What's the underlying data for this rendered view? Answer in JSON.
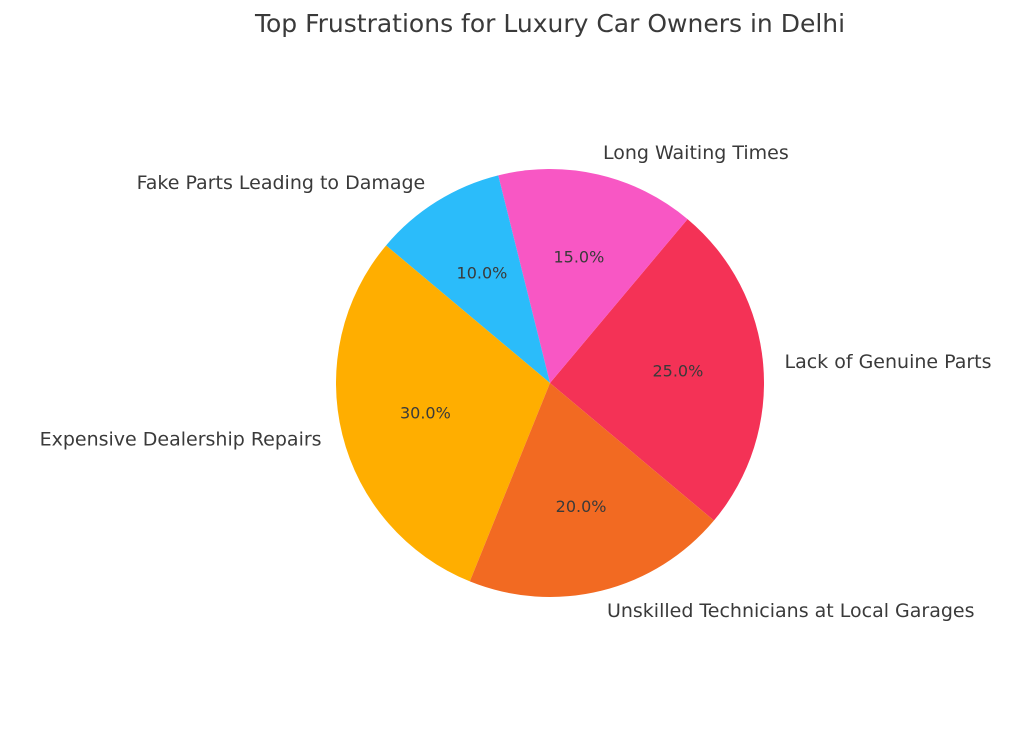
{
  "chart_data": {
    "type": "pie",
    "title": "Top Frustrations for Luxury Car Owners in Delhi",
    "categories": [
      "Lack of Genuine Parts",
      "Long Waiting Times",
      "Fake Parts Leading to Damage",
      "Expensive Dealership Repairs",
      "Unskilled Technicians at Local Garages"
    ],
    "values": [
      25,
      15,
      10,
      30,
      20
    ],
    "value_labels": [
      "25.0%",
      "15.0%",
      "10.0%",
      "30.0%",
      "20.0%"
    ],
    "colors": [
      "#f43256",
      "#f857c4",
      "#2bbcfa",
      "#ffae00",
      "#f26a22"
    ],
    "startangle": -40
  }
}
